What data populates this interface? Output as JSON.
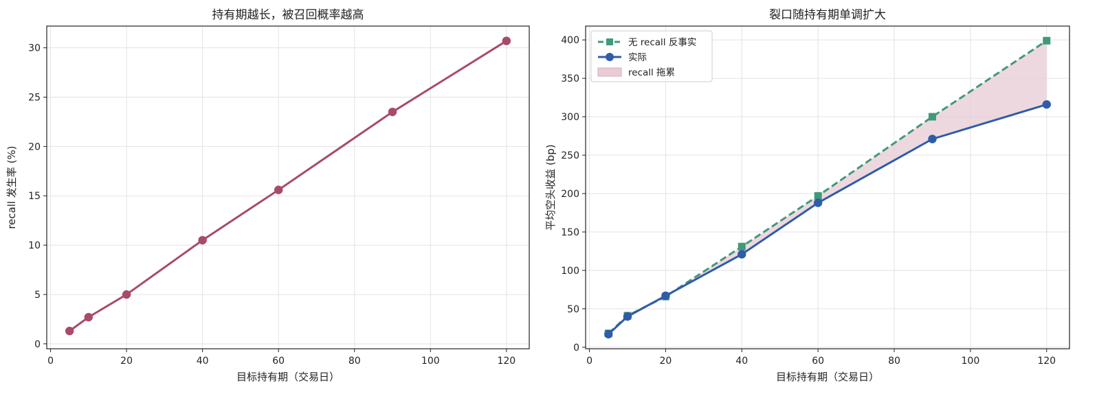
{
  "chart_data": [
    {
      "type": "line",
      "title": "持有期越长，被召回概率越高",
      "xlabel": "目标持有期（交易日）",
      "ylabel": "recall 发生率 (%)",
      "xlim": [
        -1,
        126
      ],
      "ylim": [
        -0.5,
        32.2
      ],
      "xticks": [
        0,
        20,
        40,
        60,
        80,
        100,
        120
      ],
      "yticks": [
        0,
        5,
        10,
        15,
        20,
        25,
        30
      ],
      "grid": true,
      "x": [
        5,
        10,
        20,
        40,
        60,
        90,
        120
      ],
      "series": [
        {
          "name": "",
          "color": "#a84a6c",
          "marker": "circle",
          "values": [
            1.3,
            2.7,
            5.0,
            10.5,
            15.6,
            23.5,
            30.7
          ]
        }
      ]
    },
    {
      "type": "line",
      "title": "裂口随持有期单调扩大",
      "xlabel": "目标持有期（交易日）",
      "ylabel": "平均空头收益 (bp)",
      "xlim": [
        -1,
        126
      ],
      "ylim": [
        -2,
        418
      ],
      "xticks": [
        0,
        20,
        40,
        60,
        80,
        100,
        120
      ],
      "yticks": [
        0,
        50,
        100,
        150,
        200,
        250,
        300,
        350,
        400
      ],
      "grid": true,
      "legend_position": "upper-left",
      "x": [
        5,
        10,
        20,
        40,
        60,
        90,
        120
      ],
      "series": [
        {
          "name": "无 recall 反事实",
          "color": "#3f9a78",
          "marker": "square",
          "linestyle": "dashed",
          "values": [
            18,
            41,
            66,
            131,
            197,
            300,
            399
          ]
        },
        {
          "name": "实际",
          "color": "#2f5ca8",
          "marker": "circle",
          "linestyle": "solid",
          "values": [
            17,
            40,
            67,
            121,
            188,
            271,
            316
          ]
        }
      ],
      "fill_between": {
        "name": "recall 拖累",
        "color": "#e8cbd6"
      }
    }
  ]
}
